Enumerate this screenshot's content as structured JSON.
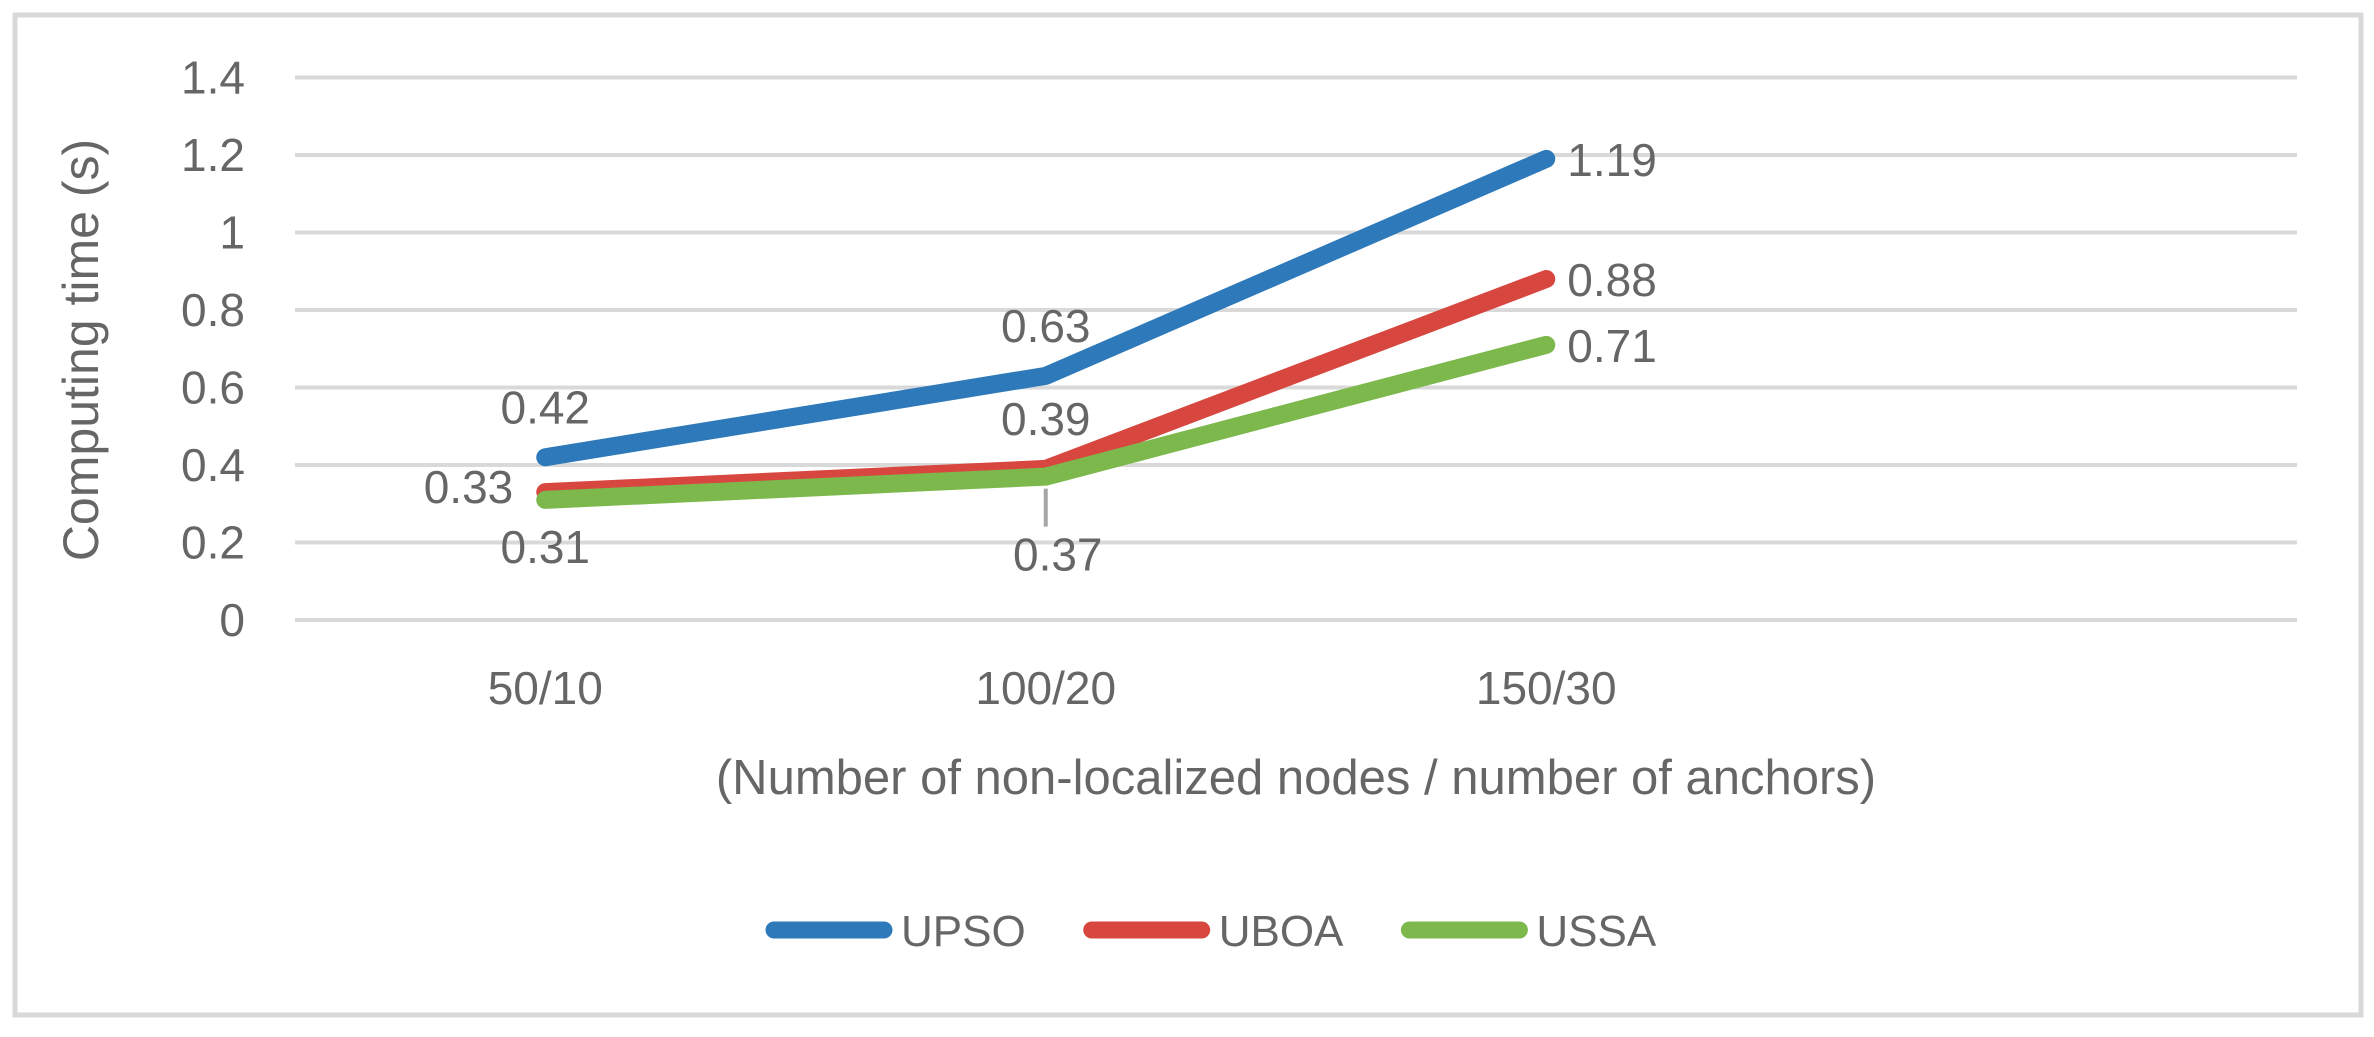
{
  "chart_data": {
    "type": "line",
    "title": "",
    "categories": [
      "50/10",
      "100/20",
      "150/30"
    ],
    "series": [
      {
        "name": "UPSO",
        "color": "#2E79B9",
        "values": [
          0.42,
          0.63,
          1.19
        ]
      },
      {
        "name": "UBOA",
        "color": "#D8473F",
        "values": [
          0.33,
          0.39,
          0.88
        ]
      },
      {
        "name": "USSA",
        "color": "#7DB84D",
        "values": [
          0.31,
          0.37,
          0.71
        ]
      }
    ],
    "data_labels": {
      "UPSO": [
        "0.42",
        "0.63",
        "1.19"
      ],
      "UBOA": [
        "0.33",
        "0.39",
        "0.88"
      ],
      "USSA": [
        "0.31",
        "0.37",
        "0.71"
      ]
    },
    "xlabel": "(Number of non-localized nodes / number of anchors)",
    "ylabel": "Computing time (s)",
    "ylim": [
      0,
      1.4
    ],
    "ytick_step": 0.2,
    "yticks": [
      "0",
      "0.2",
      "0.4",
      "0.6",
      "0.8",
      "1",
      "1.2",
      "1.4"
    ],
    "grid": "horizontal",
    "legend_position": "bottom",
    "legend_entries": [
      "UPSO",
      "UBOA",
      "USSA"
    ]
  },
  "colors": {
    "background": "#FFFFFF",
    "frame_border": "#D9D9D9",
    "gridline": "#D9D9D9",
    "text": "#666666",
    "leader_line": "#A6A6A6"
  }
}
